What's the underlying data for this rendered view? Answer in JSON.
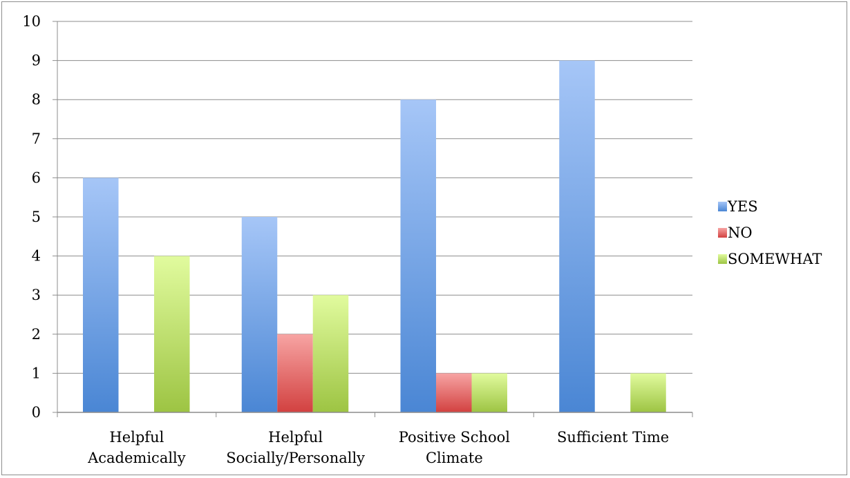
{
  "chart_data": {
    "type": "bar",
    "title": "",
    "xlabel": "",
    "ylabel": "",
    "ylim": [
      0,
      10
    ],
    "yticks": [
      0,
      1,
      2,
      3,
      4,
      5,
      6,
      7,
      8,
      9,
      10
    ],
    "grid": true,
    "legend_position": "right",
    "categories": [
      [
        "Helpful",
        "Academically"
      ],
      [
        "Helpful",
        "Socially/Personally"
      ],
      [
        "Positive School",
        "Climate"
      ],
      [
        "Sufficient Time"
      ]
    ],
    "series": [
      {
        "name": "YES",
        "values": [
          6,
          5,
          8,
          9
        ],
        "color": "#4a86d4",
        "color_light": "#a6c6f7"
      },
      {
        "name": "NO",
        "values": [
          0,
          2,
          1,
          0
        ],
        "color": "#d24140",
        "color_light": "#f7a4a3"
      },
      {
        "name": "SOMEWHAT",
        "values": [
          4,
          3,
          1,
          1
        ],
        "color": "#9dc443",
        "color_light": "#e1fb9e"
      }
    ]
  }
}
